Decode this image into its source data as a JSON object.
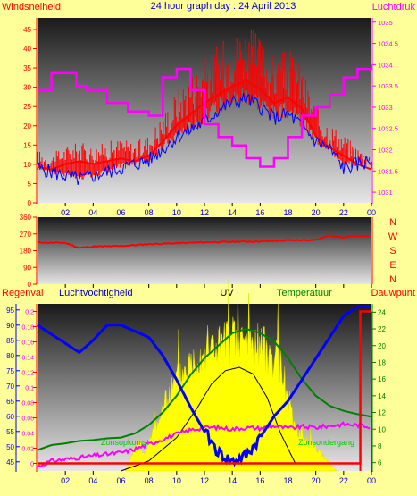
{
  "title": "24 hour graph day : 24 April 2013",
  "colors": {
    "background": "#ffff99",
    "wind": "#ff0000",
    "gust_dir": "#ff0000",
    "humidity": "#0000ff",
    "pressure": "#ff00ff",
    "uv_fill": "#ffff00",
    "solar": "#000000",
    "temperature": "#008000",
    "dewpoint": "#ff00ff",
    "rain": "#ff0000"
  },
  "x_ticks": [
    "02",
    "04",
    "06",
    "08",
    "10",
    "12",
    "14",
    "16",
    "18",
    "20",
    "22",
    "00"
  ],
  "chart_data": [
    {
      "type": "line",
      "name": "wind-pressure",
      "left_label": "Windsnelheid",
      "right_label": "Luchtdruk",
      "left_ticks": [
        "0",
        "5",
        "10",
        "15",
        "20",
        "25",
        "30",
        "35",
        "40",
        "45"
      ],
      "right_ticks": [
        "1031",
        "1031.5",
        "1032",
        "1032.5",
        "1033",
        "1033.5",
        "1034",
        "1034.5",
        "1035"
      ],
      "ylim_left": [
        0,
        48
      ],
      "ylim_right": [
        1030.75,
        1035.1
      ],
      "series": [
        {
          "role": "wind_max",
          "axis": "left",
          "x": [
            0,
            1,
            2,
            3,
            4,
            5,
            6,
            7,
            8,
            9,
            10,
            11,
            12,
            13,
            14,
            15,
            16,
            17,
            18,
            19,
            20,
            21,
            22,
            23,
            24
          ],
          "values": [
            13,
            12,
            14,
            15,
            14,
            15,
            16,
            15,
            17,
            22,
            28,
            32,
            36,
            39,
            42,
            44,
            41,
            36,
            38,
            34,
            24,
            20,
            17,
            14,
            12
          ]
        },
        {
          "role": "wind_avg",
          "axis": "left",
          "x": [
            0,
            1,
            2,
            3,
            4,
            5,
            6,
            7,
            8,
            9,
            10,
            11,
            12,
            13,
            14,
            15,
            16,
            17,
            18,
            19,
            20,
            21,
            22,
            23,
            24
          ],
          "values": [
            9,
            8,
            7,
            6,
            7,
            8,
            9,
            10,
            11,
            14,
            17,
            19,
            21,
            24,
            26,
            27,
            25,
            22,
            23,
            20,
            16,
            14,
            9,
            10,
            11
          ]
        },
        {
          "role": "pressure",
          "axis": "right",
          "x": [
            0,
            1,
            2,
            2.8,
            3.5,
            5,
            6.5,
            8,
            9,
            10,
            11,
            12,
            13,
            14,
            15,
            16,
            17,
            18,
            19,
            20,
            21,
            22,
            23,
            24
          ],
          "values": [
            1033.4,
            1033.8,
            1033.8,
            1033.5,
            1033.4,
            1033.1,
            1032.9,
            1032.8,
            1033.7,
            1033.9,
            1033.4,
            1032.6,
            1032.3,
            1032.1,
            1031.8,
            1031.6,
            1031.8,
            1032.3,
            1032.8,
            1033.0,
            1033.3,
            1033.7,
            1033.9,
            1034.0
          ]
        }
      ]
    },
    {
      "type": "line",
      "name": "wind-direction",
      "left_ticks": [
        "0",
        "90",
        "180",
        "270",
        "360"
      ],
      "right_ticks": [
        "N",
        "W",
        "S",
        "E",
        "N"
      ],
      "ylim": [
        0,
        360
      ],
      "series": [
        {
          "role": "direction",
          "x": [
            0,
            1,
            2,
            3,
            4,
            6,
            8,
            10,
            12,
            14,
            16,
            18,
            20,
            21,
            22,
            23,
            24
          ],
          "values": [
            225,
            222,
            222,
            195,
            202,
            205,
            215,
            220,
            225,
            228,
            230,
            235,
            238,
            262,
            250,
            260,
            255
          ]
        }
      ]
    },
    {
      "type": "line",
      "name": "environment",
      "labels": {
        "rain": "Regenval",
        "humidity": "Luchtvochtigheid",
        "uv": "UV",
        "temperature": "Temperatuur",
        "dewpoint": "Dauwpunt"
      },
      "sun_labels": {
        "sunrise": "Zonsopkomst",
        "sunset": "Zonsondergang"
      },
      "humidity_ticks": [
        "45",
        "50",
        "55",
        "60",
        "65",
        "70",
        "75",
        "80",
        "85",
        "90",
        "95"
      ],
      "rain_ticks": [
        "0",
        "0.02",
        "0.04",
        "0.06",
        "0.08",
        "0.1",
        "0.12",
        "0.14",
        "0.16",
        "0.18",
        "0.2"
      ],
      "temp_ticks": [
        "6",
        "8",
        "10",
        "12",
        "14",
        "16",
        "18",
        "20",
        "22",
        "24"
      ],
      "ylim_humidity": [
        42,
        97
      ],
      "ylim_rain": [
        -0.01,
        0.21
      ],
      "ylim_temp": [
        5,
        25
      ],
      "series": [
        {
          "role": "humidity",
          "axis": "humidity",
          "x": [
            0,
            1,
            2,
            3,
            4,
            5,
            6,
            7,
            8,
            9,
            10,
            11,
            12,
            13,
            14,
            15,
            16,
            17,
            18,
            19,
            20,
            21,
            22,
            23,
            24
          ],
          "values": [
            90,
            87,
            84,
            81,
            85,
            90,
            90,
            88,
            86,
            80,
            72,
            63,
            55,
            48,
            45,
            47,
            53,
            60,
            65,
            72,
            79,
            86,
            93,
            96,
            96
          ]
        },
        {
          "role": "temperature",
          "axis": "temp",
          "x": [
            0,
            1,
            2,
            3,
            4,
            5,
            6,
            7,
            8,
            9,
            10,
            11,
            12,
            13,
            14,
            15,
            16,
            17,
            18,
            19,
            20,
            21,
            22,
            23,
            24
          ],
          "values": [
            7.5,
            8.1,
            8.3,
            8.6,
            8.7,
            8.9,
            9.0,
            9.5,
            10.5,
            12,
            14,
            16.5,
            18.5,
            20,
            21.5,
            22,
            21.5,
            20.5,
            18.5,
            16,
            14,
            12.8,
            12.2,
            11.8,
            11.5
          ]
        },
        {
          "role": "dewpoint",
          "axis": "temp",
          "x": [
            0,
            1,
            2,
            3,
            4,
            5,
            6,
            7,
            8,
            9,
            10,
            11,
            12,
            13,
            14,
            15,
            16,
            17,
            18,
            19,
            20,
            21,
            22,
            23,
            24
          ],
          "values": [
            5.5,
            6.2,
            6.4,
            6.6,
            6.8,
            7.0,
            7.2,
            7.6,
            8.2,
            8.8,
            9.4,
            9.9,
            10.2,
            10.2,
            10.0,
            10.2,
            10.1,
            10.4,
            10.1,
            10.3,
            10.2,
            10.4,
            10.6,
            10.5,
            10.3
          ]
        },
        {
          "role": "uv",
          "axis": "uv",
          "x": [
            6.3,
            7.3,
            7.7,
            8.5,
            10,
            12,
            14,
            16,
            17.4,
            18,
            18.4,
            19.5,
            20.5,
            21.5
          ],
          "values": [
            0,
            2,
            1,
            3,
            6,
            8,
            8.5,
            8.2,
            7,
            5,
            3,
            2,
            1,
            0
          ]
        },
        {
          "role": "solar",
          "axis": "uv",
          "x": [
            6,
            8,
            10,
            11.5,
            12.5,
            13.5,
            14.5,
            15.5,
            16.5,
            17.5,
            18.5
          ],
          "values": [
            0,
            0.6,
            2,
            3.8,
            5.2,
            6,
            6.2,
            5.8,
            4.4,
            2.2,
            0.5
          ]
        },
        {
          "role": "rain",
          "axis": "rain",
          "x": [
            0,
            21.7,
            22,
            23.2,
            23.6,
            24
          ],
          "values": [
            0,
            0,
            0,
            0.2,
            0.2,
            0.2
          ]
        }
      ]
    }
  ]
}
